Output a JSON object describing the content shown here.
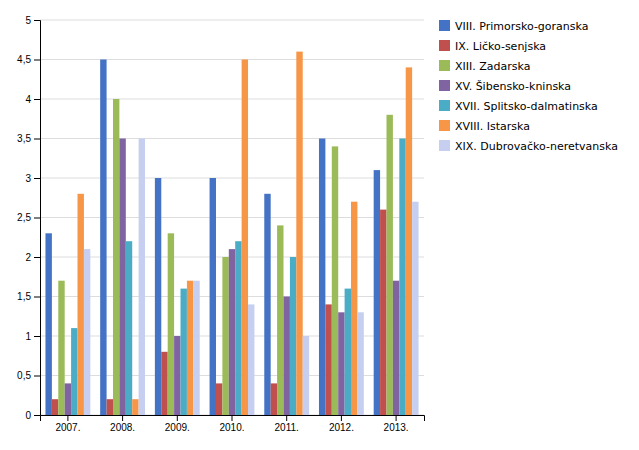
{
  "chart_data": {
    "type": "bar",
    "categories": [
      "2007.",
      "2008.",
      "2009.",
      "2010.",
      "2011.",
      "2012.",
      "2013."
    ],
    "series": [
      {
        "name": "VIII. Primorsko-goranska",
        "color": "#4472C4",
        "values": [
          2.3,
          4.5,
          3.0,
          3.0,
          2.8,
          3.5,
          3.1
        ]
      },
      {
        "name": "IX. Ličko-senjska",
        "color": "#C0504D",
        "values": [
          0.2,
          0.2,
          0.8,
          0.4,
          0.4,
          1.4,
          2.6
        ]
      },
      {
        "name": "XIII. Zadarska",
        "color": "#9BBB59",
        "values": [
          1.7,
          4.0,
          2.3,
          2.0,
          2.4,
          3.4,
          3.8
        ]
      },
      {
        "name": "XV. Šibensko-kninska",
        "color": "#8064A2",
        "values": [
          0.4,
          3.5,
          1.0,
          2.1,
          1.5,
          1.3,
          1.7
        ]
      },
      {
        "name": "XVII. Splitsko-dalmatinska",
        "color": "#4BACC6",
        "values": [
          1.1,
          2.2,
          1.6,
          2.2,
          2.0,
          1.6,
          3.5
        ]
      },
      {
        "name": "XVIII. Istarska",
        "color": "#F79646",
        "values": [
          2.8,
          0.2,
          1.7,
          4.5,
          4.6,
          2.7,
          4.4
        ]
      },
      {
        "name": "XIX. Dubrovačko-neretvanska",
        "color": "#C6CFEF",
        "values": [
          2.1,
          3.5,
          1.7,
          1.4,
          1.0,
          1.3,
          2.7
        ]
      }
    ],
    "ylim": [
      0,
      5
    ],
    "yticks": [
      0,
      {
        "value": 0.5,
        "label": "0,5"
      },
      1,
      {
        "value": 1.5,
        "label": "1,5"
      },
      2,
      {
        "value": 2.5,
        "label": "2,5"
      },
      3,
      {
        "value": 3.5,
        "label": "3,5"
      },
      4,
      {
        "value": 4.5,
        "label": "4,5"
      },
      5
    ],
    "grid": true,
    "legend": "right"
  }
}
